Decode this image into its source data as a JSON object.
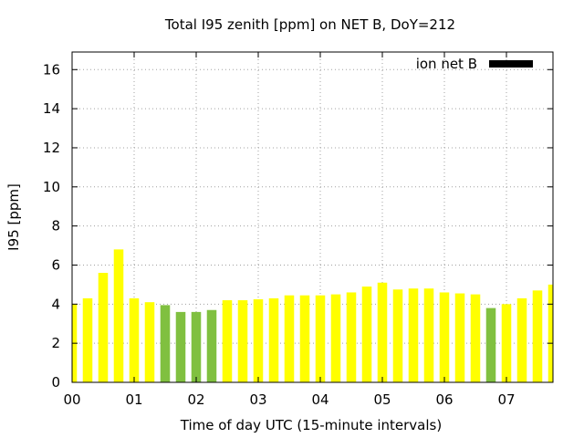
{
  "chart_data": {
    "type": "bar",
    "title": "Total I95 zenith [ppm] on NET B, DoY=212",
    "xlabel": "Time of day UTC (15-minute intervals)",
    "ylabel": "I95 [ppm]",
    "xlim": [
      0,
      7.75
    ],
    "ylim": [
      0,
      16.9
    ],
    "x_ticks": [
      "00",
      "01",
      "02",
      "03",
      "04",
      "05",
      "06",
      "07"
    ],
    "y_ticks": [
      "0",
      "2",
      "4",
      "6",
      "8",
      "10",
      "12",
      "14",
      "16"
    ],
    "grid": true,
    "legend": {
      "label": "ion net B",
      "color": "#000000",
      "position": "top-right"
    },
    "colors": {
      "normal": "#ffff00",
      "low": "#80c040"
    },
    "interval_hours": 0.25,
    "bars": [
      {
        "t": 0.0,
        "value": 4.0,
        "level": "normal"
      },
      {
        "t": 0.25,
        "value": 4.3,
        "level": "normal"
      },
      {
        "t": 0.5,
        "value": 5.6,
        "level": "normal"
      },
      {
        "t": 0.75,
        "value": 6.8,
        "level": "normal"
      },
      {
        "t": 1.0,
        "value": 4.3,
        "level": "normal"
      },
      {
        "t": 1.25,
        "value": 4.1,
        "level": "normal"
      },
      {
        "t": 1.5,
        "value": 3.95,
        "level": "low"
      },
      {
        "t": 1.75,
        "value": 3.6,
        "level": "low"
      },
      {
        "t": 2.0,
        "value": 3.6,
        "level": "low"
      },
      {
        "t": 2.25,
        "value": 3.7,
        "level": "low"
      },
      {
        "t": 2.5,
        "value": 4.2,
        "level": "normal"
      },
      {
        "t": 2.75,
        "value": 4.2,
        "level": "normal"
      },
      {
        "t": 3.0,
        "value": 4.25,
        "level": "normal"
      },
      {
        "t": 3.25,
        "value": 4.3,
        "level": "normal"
      },
      {
        "t": 3.5,
        "value": 4.45,
        "level": "normal"
      },
      {
        "t": 3.75,
        "value": 4.45,
        "level": "normal"
      },
      {
        "t": 4.0,
        "value": 4.45,
        "level": "normal"
      },
      {
        "t": 4.25,
        "value": 4.5,
        "level": "normal"
      },
      {
        "t": 4.5,
        "value": 4.6,
        "level": "normal"
      },
      {
        "t": 4.75,
        "value": 4.9,
        "level": "normal"
      },
      {
        "t": 5.0,
        "value": 5.1,
        "level": "normal"
      },
      {
        "t": 5.25,
        "value": 4.75,
        "level": "normal"
      },
      {
        "t": 5.5,
        "value": 4.8,
        "level": "normal"
      },
      {
        "t": 5.75,
        "value": 4.8,
        "level": "normal"
      },
      {
        "t": 6.0,
        "value": 4.6,
        "level": "normal"
      },
      {
        "t": 6.25,
        "value": 4.55,
        "level": "normal"
      },
      {
        "t": 6.5,
        "value": 4.5,
        "level": "normal"
      },
      {
        "t": 6.75,
        "value": 3.8,
        "level": "low"
      },
      {
        "t": 7.0,
        "value": 4.0,
        "level": "normal"
      },
      {
        "t": 7.25,
        "value": 4.3,
        "level": "normal"
      },
      {
        "t": 7.5,
        "value": 4.7,
        "level": "normal"
      },
      {
        "t": 7.75,
        "value": 5.0,
        "level": "normal"
      }
    ]
  }
}
